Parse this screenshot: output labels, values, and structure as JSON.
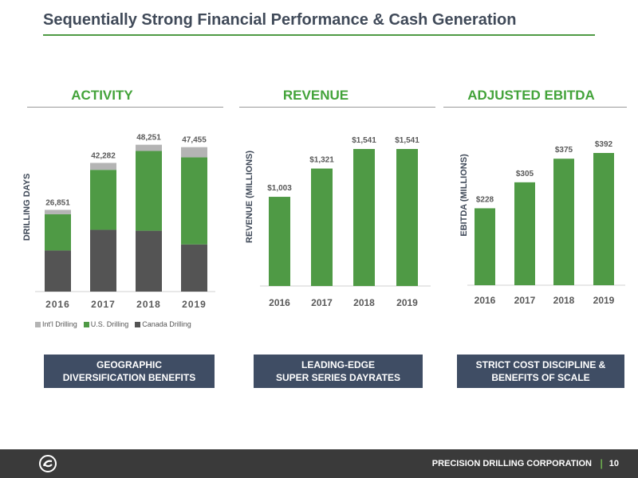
{
  "title": "Sequentially Strong Financial Performance & Cash Generation",
  "sections": {
    "activity": "ACTIVITY",
    "revenue": "REVENUE",
    "ebitda": "ADJUSTED EBITDA"
  },
  "callouts": {
    "activity": [
      "GEOGRAPHIC",
      "DIVERSIFICATION BENEFITS"
    ],
    "revenue": [
      "LEADING-EDGE",
      "SUPER SERIES DAYRATES"
    ],
    "ebitda": [
      "STRICT COST DISCIPLINE &",
      "BENEFITS OF SCALE"
    ]
  },
  "footer": {
    "company": "PRECISION DRILLING CORPORATION",
    "separator": "|",
    "page": "10"
  },
  "colors": {
    "green": "#4f9a45",
    "dark": "#545454",
    "gray": "#b4b4b4",
    "navy": "#3f4d64"
  },
  "chart_data": [
    {
      "type": "bar",
      "stacked": true,
      "categories": [
        "2016",
        "2017",
        "2018",
        "2019"
      ],
      "ylabel": "DRILLING DAYS",
      "series": [
        {
          "name": "Canada Drilling",
          "values": [
            13500,
            20300,
            20000,
            15500
          ]
        },
        {
          "name": "U.S. Drilling",
          "values": [
            11900,
            19700,
            26200,
            28600
          ]
        },
        {
          "name": "Int'l Drilling",
          "values": [
            1451,
            2282,
            2051,
            3355
          ]
        }
      ],
      "totals": [
        "26,851",
        "42,282",
        "48,251",
        "47,455"
      ],
      "ylim": [
        0,
        50000
      ],
      "legend": "bottom"
    },
    {
      "type": "bar",
      "categories": [
        "2016",
        "2017",
        "2018",
        "2019"
      ],
      "values": [
        1003,
        1321,
        1541,
        1541
      ],
      "labels": [
        "$1,003",
        "$1,321",
        "$1,541",
        "$1,541"
      ],
      "ylabel": "REVENUE (MILLIONS)",
      "ylim": [
        0,
        1541
      ]
    },
    {
      "type": "bar",
      "categories": [
        "2016",
        "2017",
        "2018",
        "2019"
      ],
      "values": [
        228,
        305,
        375,
        392
      ],
      "labels": [
        "$228",
        "$305",
        "$375",
        "$392"
      ],
      "ylabel": "EBITDA (MILLIONS)",
      "ylim": [
        0,
        392
      ]
    }
  ]
}
